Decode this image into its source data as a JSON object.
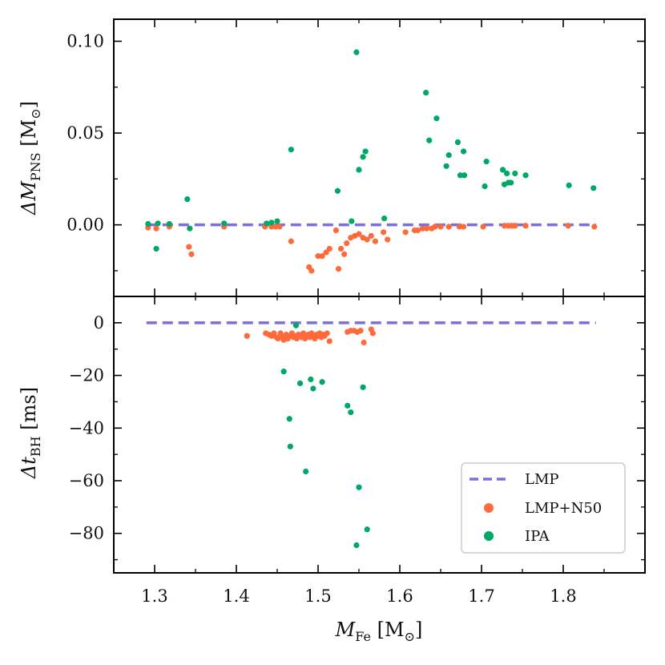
{
  "chart_data": [
    {
      "type": "scatter",
      "panel": "top",
      "ylabel_main": "ΔM",
      "ylabel_sub": "PNS",
      "ylabel_unit_open": " [M",
      "ylabel_unit_sym": "⊙",
      "ylabel_unit_close": "]",
      "xlim": [
        1.25,
        1.9
      ],
      "ylim": [
        -0.039,
        0.112
      ],
      "yticks": [
        0.0,
        0.05,
        0.1
      ],
      "ytick_labels": [
        "0.00",
        "0.05",
        "0.10"
      ],
      "yminor": [
        -0.025,
        0.025,
        0.075
      ],
      "series": [
        {
          "name": "LMP",
          "style": "dashed-line",
          "x": [
            1.29,
            1.84
          ],
          "y": [
            0.0,
            0.0
          ]
        },
        {
          "name": "LMP+N50",
          "style": "points",
          "x": [
            1.292,
            1.302,
            1.318,
            1.342,
            1.345,
            1.385,
            1.435,
            1.443,
            1.448,
            1.453,
            1.467,
            1.489,
            1.492,
            1.5,
            1.505,
            1.51,
            1.514,
            1.522,
            1.525,
            1.528,
            1.532,
            1.535,
            1.54,
            1.545,
            1.55,
            1.555,
            1.56,
            1.565,
            1.57,
            1.58,
            1.585,
            1.607,
            1.618,
            1.622,
            1.628,
            1.633,
            1.639,
            1.643,
            1.65,
            1.66,
            1.673,
            1.678,
            1.702,
            1.728,
            1.733,
            1.737,
            1.741,
            1.754,
            1.806,
            1.838
          ],
          "y": [
            -0.0015,
            -0.002,
            -0.001,
            -0.012,
            -0.016,
            -0.001,
            -0.001,
            -0.001,
            -0.001,
            -0.001,
            -0.009,
            -0.023,
            -0.025,
            -0.017,
            -0.017,
            -0.015,
            -0.013,
            -0.003,
            -0.024,
            -0.013,
            -0.016,
            -0.01,
            -0.007,
            -0.006,
            -0.005,
            -0.007,
            -0.008,
            -0.006,
            -0.009,
            -0.004,
            -0.008,
            -0.004,
            -0.003,
            -0.003,
            -0.002,
            -0.002,
            -0.002,
            -0.001,
            -0.001,
            -0.001,
            -0.001,
            -0.001,
            -0.001,
            -0.0005,
            -0.0005,
            -0.0005,
            -0.0005,
            -0.0005,
            -0.0005,
            -0.001
          ]
        },
        {
          "name": "IPA",
          "style": "points",
          "x": [
            1.292,
            1.302,
            1.304,
            1.318,
            1.34,
            1.343,
            1.385,
            1.437,
            1.443,
            1.45,
            1.467,
            1.524,
            1.541,
            1.547,
            1.55,
            1.555,
            1.558,
            1.581,
            1.632,
            1.636,
            1.645,
            1.657,
            1.66,
            1.671,
            1.674,
            1.678,
            1.679,
            1.704,
            1.706,
            1.726,
            1.728,
            1.731,
            1.733,
            1.736,
            1.741,
            1.754,
            1.807,
            1.837
          ],
          "y": [
            0.0005,
            -0.013,
            0.0008,
            0.0005,
            0.014,
            -0.002,
            0.0008,
            0.0008,
            0.0012,
            0.002,
            0.041,
            0.0185,
            0.002,
            0.094,
            0.03,
            0.037,
            0.04,
            0.0035,
            0.072,
            0.046,
            0.058,
            0.032,
            0.038,
            0.045,
            0.027,
            0.04,
            0.027,
            0.021,
            0.0345,
            0.03,
            0.022,
            0.028,
            0.023,
            0.023,
            0.028,
            0.027,
            0.0215,
            0.02
          ]
        }
      ]
    },
    {
      "type": "scatter",
      "panel": "bottom",
      "ylabel_main": "Δt",
      "ylabel_sub": "BH",
      "ylabel_unit": " [ms]",
      "xlabel_main": "M",
      "xlabel_sub": "Fe",
      "xlabel_unit_open": " [M",
      "xlabel_unit_sym": "⊙",
      "xlabel_unit_close": "]",
      "xlim": [
        1.25,
        1.9
      ],
      "ylim": [
        -95,
        10
      ],
      "xticks": [
        1.3,
        1.4,
        1.5,
        1.6,
        1.7,
        1.8
      ],
      "xtick_labels": [
        "1.3",
        "1.4",
        "1.5",
        "1.6",
        "1.7",
        "1.8"
      ],
      "xminor": [
        1.25,
        1.35,
        1.45,
        1.55,
        1.65,
        1.75,
        1.85
      ],
      "yticks": [
        0,
        -20,
        -40,
        -60,
        -80
      ],
      "ytick_labels": [
        "0",
        "−20",
        "−40",
        "−60",
        "−80"
      ],
      "yminor": [
        -10,
        -30,
        -50,
        -70,
        -90
      ],
      "series": [
        {
          "name": "LMP",
          "style": "dashed-line",
          "x": [
            1.29,
            1.84
          ],
          "y": [
            0,
            0
          ]
        },
        {
          "name": "LMP+N50",
          "style": "points",
          "x": [
            1.413,
            1.436,
            1.44,
            1.443,
            1.446,
            1.449,
            1.451,
            1.454,
            1.456,
            1.458,
            1.461,
            1.463,
            1.466,
            1.468,
            1.47,
            1.472,
            1.474,
            1.476,
            1.478,
            1.48,
            1.482,
            1.484,
            1.486,
            1.488,
            1.49,
            1.492,
            1.494,
            1.496,
            1.498,
            1.5,
            1.502,
            1.504,
            1.506,
            1.508,
            1.511,
            1.514,
            1.536,
            1.54,
            1.544,
            1.548,
            1.552,
            1.556,
            1.565,
            1.567
          ],
          "y": [
            -5,
            -4,
            -4.5,
            -5,
            -4,
            -5.5,
            -6,
            -4,
            -5,
            -6.5,
            -4.5,
            -6,
            -5,
            -4,
            -5.5,
            -5,
            -6,
            -4.5,
            -5,
            -5.5,
            -4,
            -6,
            -5,
            -4.5,
            -5.5,
            -4,
            -5,
            -6,
            -4.5,
            -5,
            -4,
            -5.5,
            -4.5,
            -5,
            -4,
            -7,
            -3.5,
            -3,
            -3,
            -3.5,
            -3,
            -7.5,
            -2.5,
            -4
          ]
        },
        {
          "name": "IPA",
          "style": "points",
          "x": [
            1.458,
            1.465,
            1.466,
            1.473,
            1.478,
            1.485,
            1.491,
            1.494,
            1.505,
            1.536,
            1.54,
            1.547,
            1.55,
            1.555,
            1.56
          ],
          "y": [
            -18.5,
            -36.5,
            -47,
            -1,
            -23,
            -56.5,
            -21.5,
            -25,
            -22.5,
            -31.5,
            -34,
            -84.5,
            -62.5,
            -24.5,
            -78.5
          ]
        }
      ],
      "legend": {
        "position": "lower-right",
        "entries": [
          {
            "label": "LMP",
            "marker": "dash"
          },
          {
            "label": "LMP+N50",
            "marker": "circle"
          },
          {
            "label": "IPA",
            "marker": "circle"
          }
        ]
      }
    }
  ],
  "colors": {
    "LMP": "#7b6fe0",
    "LMP+N50": "#ff6a3a",
    "IPA": "#00a865"
  }
}
